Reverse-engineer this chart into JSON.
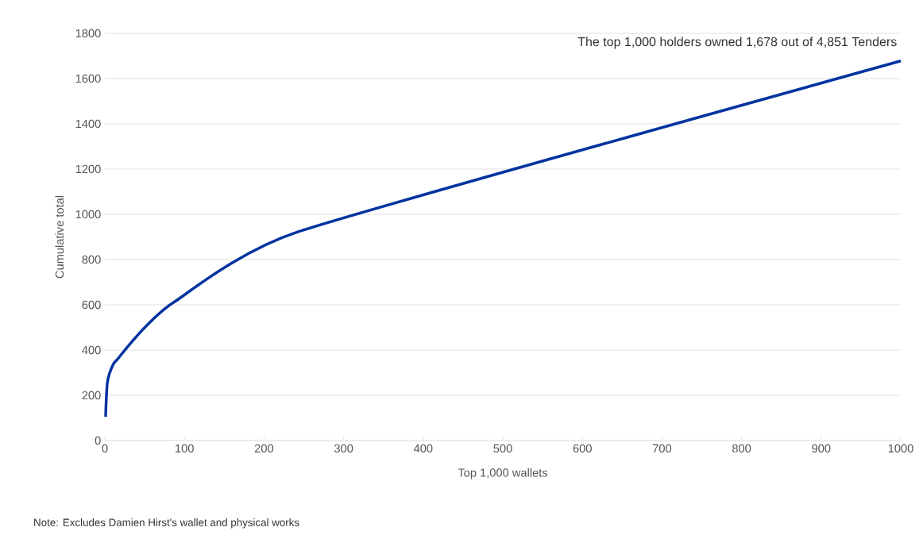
{
  "chart_data": {
    "type": "line",
    "xlabel": "Top 1,000 wallets",
    "ylabel": "Cumulative total",
    "x": [
      1,
      1.5,
      3,
      6,
      11,
      16,
      30,
      51,
      87,
      243,
      1000
    ],
    "series": [
      {
        "color": "#0033a0",
        "values": [
          105,
          160,
          253,
          298,
          340,
          360,
          421,
          503,
          612,
          923,
          1678
        ]
      }
    ],
    "xlim": [
      0,
      1000
    ],
    "xticks": [
      0,
      100,
      200,
      300,
      400,
      500,
      600,
      700,
      800,
      900,
      1000
    ],
    "ylim": [
      0,
      1800
    ],
    "yticks": [
      0,
      200,
      400,
      600,
      800,
      1000,
      1200,
      1400,
      1600,
      1800
    ],
    "grid": "y",
    "marker": "none",
    "line_style": "solid",
    "annotations": [
      {
        "text": "The top 1,000 holders owned 1,678 out of 4,851 Tenders",
        "x": 1000,
        "y": 1678
      },
      "Note: Excludes Damien Hirst's wallet and physical works"
    ]
  }
}
